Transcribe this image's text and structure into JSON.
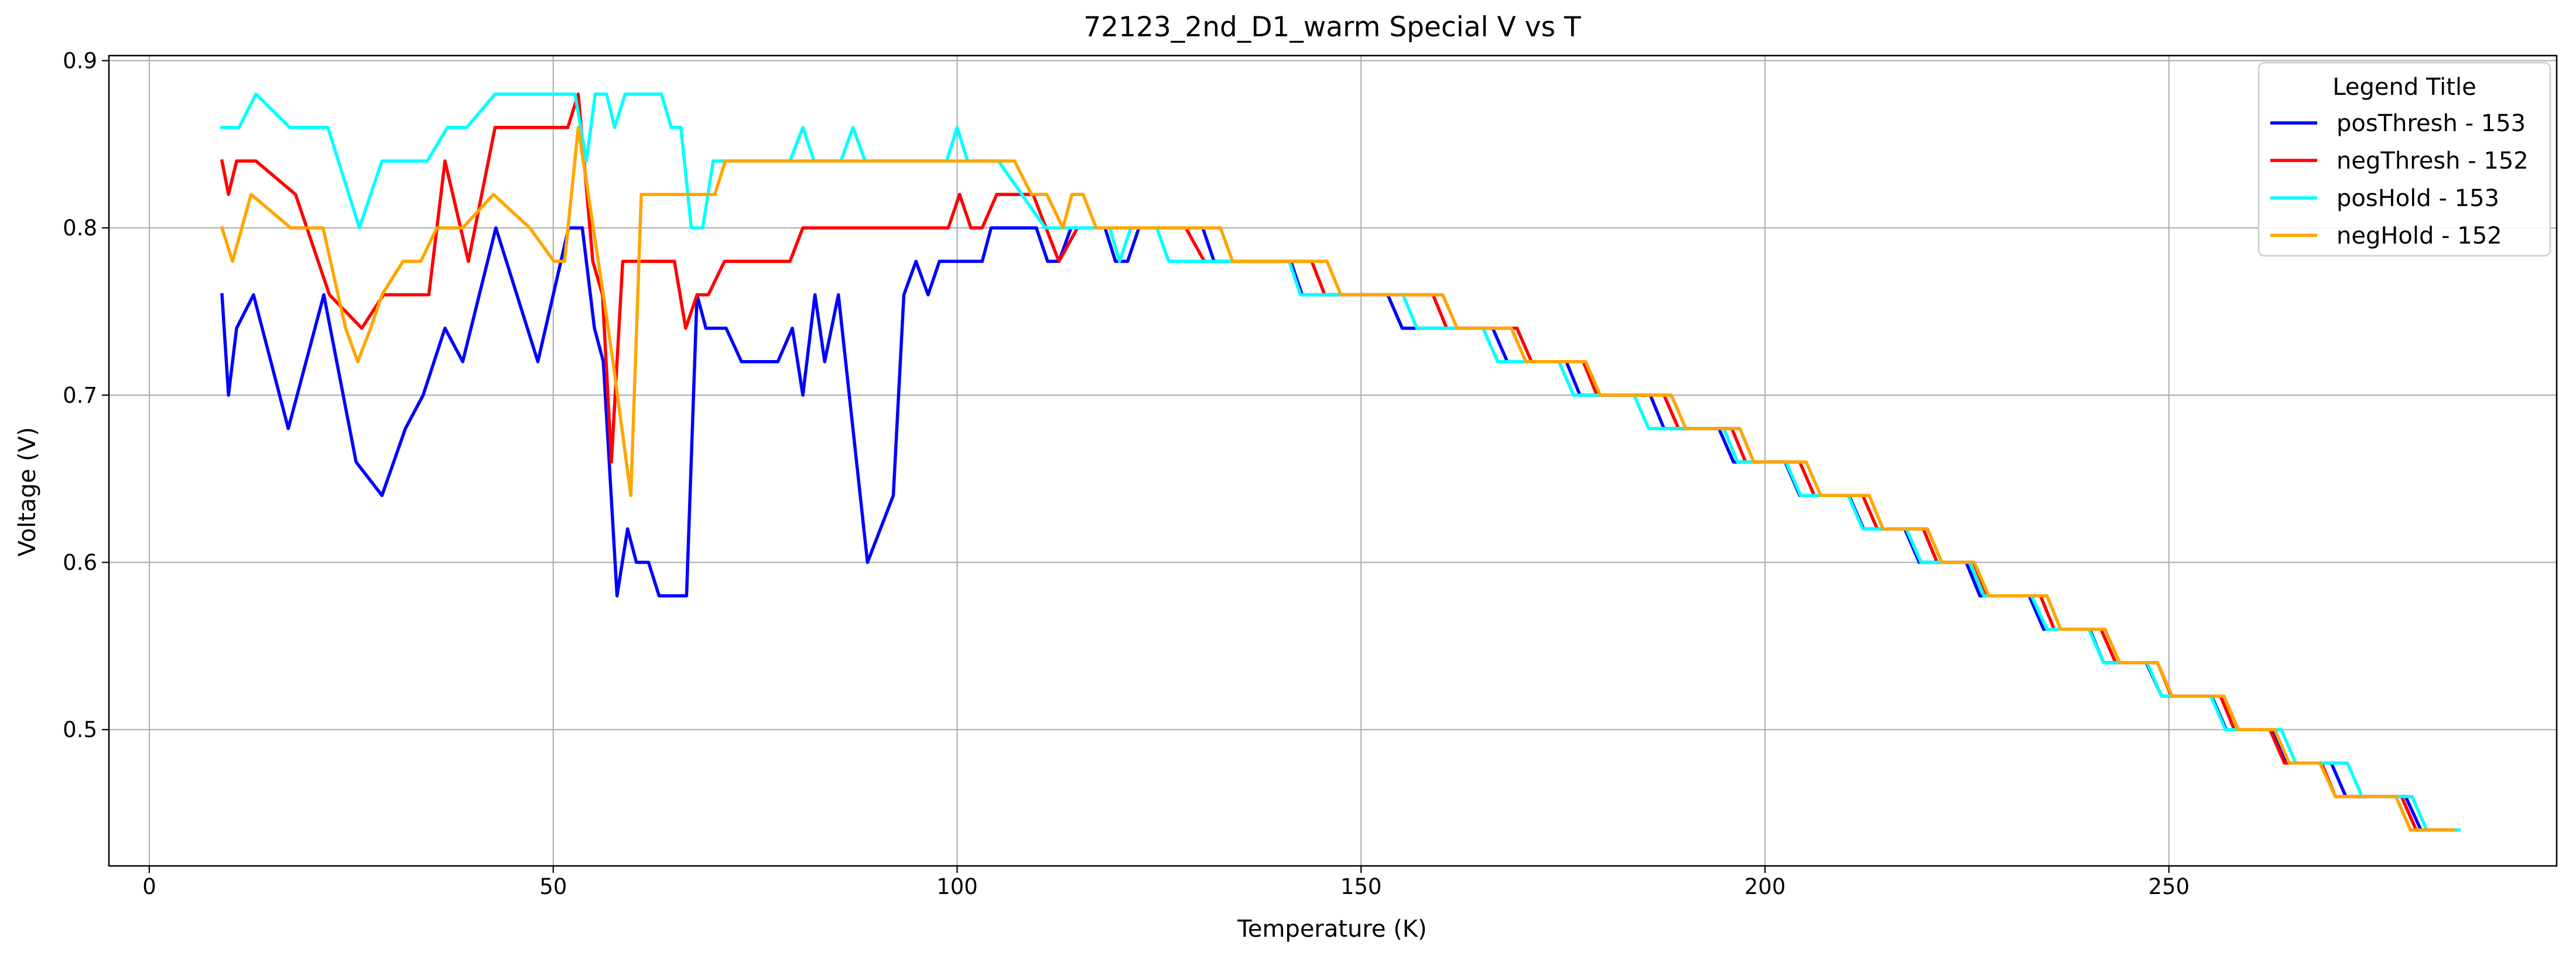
{
  "chart_data": {
    "type": "line",
    "title": "72123_2nd_D1_warm Special V vs T",
    "xlabel": "Temperature (K)",
    "ylabel": "Voltage (V)",
    "xlim": [
      -5,
      298
    ],
    "ylim": [
      0.4185,
      0.903
    ],
    "xticks": [
      0,
      50,
      100,
      150,
      200,
      250
    ],
    "yticks": [
      0.5,
      0.6,
      0.7,
      0.8,
      0.9
    ],
    "xtick_labels": [
      "0",
      "50",
      "100",
      "150",
      "200",
      "250"
    ],
    "ytick_labels": [
      "0.5",
      "0.6",
      "0.7",
      "0.8",
      "0.9"
    ],
    "grid": true,
    "legend": {
      "title": "Legend Title",
      "position": "top-right"
    },
    "series": [
      {
        "name": "posThresh - 153",
        "color": "#0000ff",
        "points": [
          [
            9,
            0.76
          ],
          [
            9.8,
            0.7
          ],
          [
            10.8,
            0.74
          ],
          [
            12.9,
            0.76
          ],
          [
            17.2,
            0.68
          ],
          [
            21.6,
            0.76
          ],
          [
            25.6,
            0.66
          ],
          [
            28.8,
            0.64
          ],
          [
            31.7,
            0.68
          ],
          [
            33.9,
            0.7
          ],
          [
            36.6,
            0.74
          ],
          [
            38.8,
            0.72
          ],
          [
            42.9,
            0.8
          ],
          [
            48.1,
            0.72
          ],
          [
            51.9,
            0.8
          ],
          [
            53.6,
            0.8
          ],
          [
            55.1,
            0.74
          ],
          [
            56.2,
            0.72
          ],
          [
            57.9,
            0.58
          ],
          [
            59.2,
            0.62
          ],
          [
            60.3,
            0.6
          ],
          [
            61.8,
            0.6
          ],
          [
            63.1,
            0.58
          ],
          [
            66.5,
            0.58
          ],
          [
            67.8,
            0.76
          ],
          [
            68.9,
            0.74
          ],
          [
            71.4,
            0.74
          ],
          [
            73.3,
            0.72
          ],
          [
            77.8,
            0.72
          ],
          [
            79.6,
            0.74
          ],
          [
            80.9,
            0.7
          ],
          [
            82.4,
            0.76
          ],
          [
            83.6,
            0.72
          ],
          [
            85.3,
            0.76
          ],
          [
            88.9,
            0.6
          ],
          [
            92.1,
            0.64
          ],
          [
            93.4,
            0.76
          ],
          [
            94.9,
            0.78
          ],
          [
            96.4,
            0.76
          ],
          [
            97.8,
            0.78
          ],
          [
            103.1,
            0.78
          ],
          [
            104.2,
            0.8
          ],
          [
            109.8,
            0.8
          ],
          [
            111.2,
            0.78
          ],
          [
            112.6,
            0.78
          ],
          [
            114.1,
            0.8
          ],
          [
            118.3,
            0.8
          ],
          [
            119.6,
            0.78
          ],
          [
            121.1,
            0.78
          ],
          [
            122.5,
            0.8
          ],
          [
            130.4,
            0.8
          ],
          [
            131.8,
            0.78
          ],
          [
            141.3,
            0.78
          ],
          [
            142.7,
            0.76
          ],
          [
            153.3,
            0.76
          ],
          [
            155.1,
            0.74
          ],
          [
            159.8,
            0.74
          ],
          [
            161.4,
            0.74
          ],
          [
            166.3,
            0.74
          ],
          [
            168.1,
            0.72
          ],
          [
            175.4,
            0.72
          ],
          [
            177.1,
            0.7
          ],
          [
            185.8,
            0.7
          ],
          [
            187.5,
            0.68
          ],
          [
            194.3,
            0.68
          ],
          [
            196.1,
            0.66
          ],
          [
            202.5,
            0.66
          ],
          [
            204.3,
            0.64
          ],
          [
            210.4,
            0.64
          ],
          [
            212.2,
            0.62
          ],
          [
            217.3,
            0.62
          ],
          [
            219.1,
            0.6
          ],
          [
            224.9,
            0.6
          ],
          [
            226.6,
            0.58
          ],
          [
            232.7,
            0.58
          ],
          [
            234.5,
            0.56
          ],
          [
            240.2,
            0.56
          ],
          [
            241.9,
            0.54
          ],
          [
            247.2,
            0.54
          ],
          [
            249.1,
            0.52
          ],
          [
            255.3,
            0.52
          ],
          [
            257.1,
            0.5
          ],
          [
            262.8,
            0.5
          ],
          [
            264.6,
            0.48
          ],
          [
            270.1,
            0.48
          ],
          [
            271.9,
            0.46
          ],
          [
            279.3,
            0.46
          ],
          [
            281.2,
            0.44
          ],
          [
            285.6,
            0.44
          ]
        ]
      },
      {
        "name": "negThresh - 152",
        "color": "#ff0000",
        "points": [
          [
            9,
            0.84
          ],
          [
            9.8,
            0.82
          ],
          [
            10.8,
            0.84
          ],
          [
            13.2,
            0.84
          ],
          [
            18.1,
            0.82
          ],
          [
            22.3,
            0.76
          ],
          [
            26.3,
            0.74
          ],
          [
            29.0,
            0.76
          ],
          [
            34.6,
            0.76
          ],
          [
            36.6,
            0.84
          ],
          [
            39.5,
            0.78
          ],
          [
            42.8,
            0.86
          ],
          [
            51.8,
            0.86
          ],
          [
            53.1,
            0.88
          ],
          [
            54.9,
            0.78
          ],
          [
            56.1,
            0.76
          ],
          [
            57.2,
            0.66
          ],
          [
            58.6,
            0.78
          ],
          [
            65.0,
            0.78
          ],
          [
            66.4,
            0.74
          ],
          [
            67.8,
            0.76
          ],
          [
            69.2,
            0.76
          ],
          [
            71.2,
            0.78
          ],
          [
            79.3,
            0.78
          ],
          [
            80.9,
            0.8
          ],
          [
            98.9,
            0.8
          ],
          [
            100.3,
            0.82
          ],
          [
            101.7,
            0.8
          ],
          [
            103.1,
            0.8
          ],
          [
            104.9,
            0.82
          ],
          [
            109.4,
            0.82
          ],
          [
            112.6,
            0.78
          ],
          [
            114.9,
            0.8
          ],
          [
            128.3,
            0.8
          ],
          [
            130.6,
            0.78
          ],
          [
            143.9,
            0.78
          ],
          [
            145.5,
            0.76
          ],
          [
            158.9,
            0.76
          ],
          [
            160.6,
            0.74
          ],
          [
            169.3,
            0.74
          ],
          [
            171.1,
            0.72
          ],
          [
            177.5,
            0.72
          ],
          [
            179.2,
            0.7
          ],
          [
            187.5,
            0.7
          ],
          [
            189.3,
            0.68
          ],
          [
            195.9,
            0.68
          ],
          [
            197.6,
            0.66
          ],
          [
            204.3,
            0.66
          ],
          [
            206.1,
            0.64
          ],
          [
            212.1,
            0.64
          ],
          [
            213.9,
            0.62
          ],
          [
            219.6,
            0.62
          ],
          [
            221.3,
            0.6
          ],
          [
            225.8,
            0.6
          ],
          [
            227.5,
            0.58
          ],
          [
            234.1,
            0.58
          ],
          [
            235.8,
            0.56
          ],
          [
            241.6,
            0.56
          ],
          [
            243.4,
            0.54
          ],
          [
            248.6,
            0.54
          ],
          [
            250.3,
            0.52
          ],
          [
            256.4,
            0.52
          ],
          [
            258.1,
            0.5
          ],
          [
            262.5,
            0.5
          ],
          [
            264.3,
            0.48
          ],
          [
            268.9,
            0.48
          ],
          [
            270.6,
            0.46
          ],
          [
            278.8,
            0.46
          ],
          [
            280.6,
            0.44
          ],
          [
            285.3,
            0.44
          ]
        ]
      },
      {
        "name": "posHold - 153",
        "color": "#00ffff",
        "points": [
          [
            9,
            0.86
          ],
          [
            11.1,
            0.86
          ],
          [
            13.2,
            0.88
          ],
          [
            17.4,
            0.86
          ],
          [
            22.1,
            0.86
          ],
          [
            26.0,
            0.8
          ],
          [
            28.8,
            0.84
          ],
          [
            34.4,
            0.84
          ],
          [
            36.9,
            0.86
          ],
          [
            39.3,
            0.86
          ],
          [
            42.8,
            0.88
          ],
          [
            52.7,
            0.88
          ],
          [
            54.1,
            0.84
          ],
          [
            55.2,
            0.88
          ],
          [
            56.6,
            0.88
          ],
          [
            57.6,
            0.86
          ],
          [
            58.9,
            0.88
          ],
          [
            63.4,
            0.88
          ],
          [
            64.6,
            0.86
          ],
          [
            65.8,
            0.86
          ],
          [
            67.1,
            0.8
          ],
          [
            68.5,
            0.8
          ],
          [
            69.8,
            0.84
          ],
          [
            79.3,
            0.84
          ],
          [
            80.9,
            0.86
          ],
          [
            82.3,
            0.84
          ],
          [
            85.6,
            0.84
          ],
          [
            87.1,
            0.86
          ],
          [
            88.6,
            0.84
          ],
          [
            98.7,
            0.84
          ],
          [
            100.0,
            0.86
          ],
          [
            101.3,
            0.84
          ],
          [
            105.1,
            0.84
          ],
          [
            110.9,
            0.8
          ],
          [
            118.9,
            0.8
          ],
          [
            120.1,
            0.78
          ],
          [
            121.5,
            0.8
          ],
          [
            124.7,
            0.8
          ],
          [
            126.2,
            0.78
          ],
          [
            141.1,
            0.78
          ],
          [
            142.5,
            0.76
          ],
          [
            155.2,
            0.76
          ],
          [
            156.9,
            0.74
          ],
          [
            165.1,
            0.74
          ],
          [
            166.9,
            0.72
          ],
          [
            174.5,
            0.72
          ],
          [
            176.3,
            0.7
          ],
          [
            183.8,
            0.7
          ],
          [
            185.6,
            0.68
          ],
          [
            194.9,
            0.68
          ],
          [
            196.6,
            0.66
          ],
          [
            202.6,
            0.66
          ],
          [
            204.4,
            0.64
          ],
          [
            210.3,
            0.64
          ],
          [
            212.1,
            0.62
          ],
          [
            217.5,
            0.62
          ],
          [
            219.3,
            0.6
          ],
          [
            225.3,
            0.6
          ],
          [
            227.1,
            0.58
          ],
          [
            233.0,
            0.58
          ],
          [
            234.9,
            0.56
          ],
          [
            240.1,
            0.56
          ],
          [
            241.9,
            0.54
          ],
          [
            247.3,
            0.54
          ],
          [
            249.1,
            0.52
          ],
          [
            255.2,
            0.52
          ],
          [
            257.0,
            0.5
          ],
          [
            263.9,
            0.5
          ],
          [
            265.7,
            0.48
          ],
          [
            272.1,
            0.48
          ],
          [
            273.9,
            0.46
          ],
          [
            280.1,
            0.46
          ],
          [
            281.9,
            0.44
          ],
          [
            285.9,
            0.44
          ]
        ]
      },
      {
        "name": "negHold - 152",
        "color": "#ffa500",
        "points": [
          [
            9,
            0.8
          ],
          [
            10.3,
            0.78
          ],
          [
            12.6,
            0.82
          ],
          [
            17.5,
            0.8
          ],
          [
            21.5,
            0.8
          ],
          [
            24.3,
            0.74
          ],
          [
            25.8,
            0.72
          ],
          [
            27.4,
            0.74
          ],
          [
            28.8,
            0.76
          ],
          [
            31.4,
            0.78
          ],
          [
            33.6,
            0.78
          ],
          [
            35.6,
            0.8
          ],
          [
            38.8,
            0.8
          ],
          [
            42.6,
            0.82
          ],
          [
            47.1,
            0.8
          ],
          [
            50.1,
            0.78
          ],
          [
            51.4,
            0.78
          ],
          [
            53.1,
            0.86
          ],
          [
            56.2,
            0.76
          ],
          [
            57.4,
            0.72
          ],
          [
            59.6,
            0.64
          ],
          [
            60.9,
            0.82
          ],
          [
            70.0,
            0.82
          ],
          [
            71.3,
            0.84
          ],
          [
            107.1,
            0.84
          ],
          [
            109.2,
            0.82
          ],
          [
            111.1,
            0.82
          ],
          [
            113.1,
            0.8
          ],
          [
            114.2,
            0.82
          ],
          [
            115.6,
            0.82
          ],
          [
            117.2,
            0.8
          ],
          [
            132.6,
            0.8
          ],
          [
            134.1,
            0.78
          ],
          [
            145.8,
            0.78
          ],
          [
            147.5,
            0.76
          ],
          [
            160.1,
            0.76
          ],
          [
            161.9,
            0.74
          ],
          [
            168.6,
            0.74
          ],
          [
            170.4,
            0.72
          ],
          [
            177.8,
            0.72
          ],
          [
            179.6,
            0.7
          ],
          [
            188.4,
            0.7
          ],
          [
            190.2,
            0.68
          ],
          [
            196.9,
            0.68
          ],
          [
            198.6,
            0.66
          ],
          [
            205.1,
            0.66
          ],
          [
            206.9,
            0.64
          ],
          [
            212.9,
            0.64
          ],
          [
            214.6,
            0.62
          ],
          [
            220.1,
            0.62
          ],
          [
            221.9,
            0.6
          ],
          [
            225.9,
            0.6
          ],
          [
            227.7,
            0.58
          ],
          [
            234.9,
            0.58
          ],
          [
            236.6,
            0.56
          ],
          [
            242.1,
            0.56
          ],
          [
            243.9,
            0.54
          ],
          [
            248.6,
            0.54
          ],
          [
            250.4,
            0.52
          ],
          [
            256.8,
            0.52
          ],
          [
            258.6,
            0.5
          ],
          [
            263.1,
            0.5
          ],
          [
            264.9,
            0.48
          ],
          [
            268.7,
            0.48
          ],
          [
            270.6,
            0.46
          ],
          [
            278.1,
            0.46
          ],
          [
            279.9,
            0.44
          ],
          [
            285.2,
            0.44
          ]
        ]
      }
    ]
  }
}
